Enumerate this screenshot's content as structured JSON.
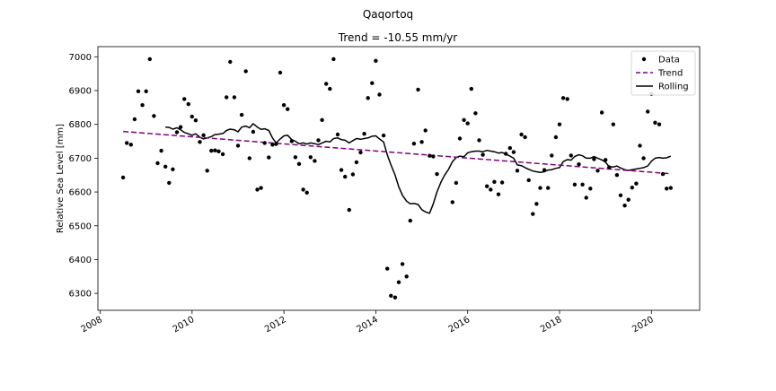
{
  "figure": {
    "suptitle": "Qaqortoq",
    "title": "Trend = -10.55 mm/yr"
  },
  "chart_data": {
    "type": "scatter",
    "ylabel": "Relative Sea Level [mm]",
    "xlim": [
      2007.95,
      2021.05
    ],
    "ylim": [
      6250,
      7030
    ],
    "xticks": [
      2008,
      2010,
      2012,
      2014,
      2016,
      2018,
      2020
    ],
    "yticks": [
      6300,
      6400,
      6500,
      6600,
      6700,
      6800,
      6900,
      7000
    ],
    "legend": {
      "position": "top-right",
      "entries": [
        {
          "label": "Data",
          "kind": "marker",
          "color": "#000000"
        },
        {
          "label": "Trend",
          "kind": "dashed",
          "color": "#800080"
        },
        {
          "label": "Rolling",
          "kind": "line",
          "color": "#000000"
        }
      ]
    },
    "series": [
      {
        "name": "Data",
        "kind": "scatter",
        "color": "#000000",
        "points": [
          [
            2008.5,
            6643
          ],
          [
            2008.58,
            6745
          ],
          [
            2008.67,
            6740
          ],
          [
            2008.75,
            6815
          ],
          [
            2008.83,
            6898
          ],
          [
            2008.92,
            6857
          ],
          [
            2009.0,
            6898
          ],
          [
            2009.08,
            6993
          ],
          [
            2009.17,
            6825
          ],
          [
            2009.25,
            6685
          ],
          [
            2009.33,
            6722
          ],
          [
            2009.42,
            6675
          ],
          [
            2009.5,
            6627
          ],
          [
            2009.58,
            6667
          ],
          [
            2009.67,
            6777
          ],
          [
            2009.75,
            6792
          ],
          [
            2009.83,
            6875
          ],
          [
            2009.92,
            6860
          ],
          [
            2010.0,
            6823
          ],
          [
            2010.08,
            6812
          ],
          [
            2010.17,
            6748
          ],
          [
            2010.25,
            6768
          ],
          [
            2010.33,
            6663
          ],
          [
            2010.42,
            6722
          ],
          [
            2010.5,
            6723
          ],
          [
            2010.58,
            6720
          ],
          [
            2010.67,
            6712
          ],
          [
            2010.75,
            6880
          ],
          [
            2010.83,
            6985
          ],
          [
            2010.92,
            6880
          ],
          [
            2011.0,
            6737
          ],
          [
            2011.08,
            6828
          ],
          [
            2011.17,
            6957
          ],
          [
            2011.25,
            6700
          ],
          [
            2011.33,
            6778
          ],
          [
            2011.42,
            6607
          ],
          [
            2011.5,
            6612
          ],
          [
            2011.58,
            6745
          ],
          [
            2011.67,
            6702
          ],
          [
            2011.75,
            6740
          ],
          [
            2011.83,
            6742
          ],
          [
            2011.92,
            6953
          ],
          [
            2012.0,
            6857
          ],
          [
            2012.08,
            6845
          ],
          [
            2012.17,
            6750
          ],
          [
            2012.25,
            6703
          ],
          [
            2012.33,
            6683
          ],
          [
            2012.42,
            6607
          ],
          [
            2012.5,
            6598
          ],
          [
            2012.58,
            6703
          ],
          [
            2012.67,
            6692
          ],
          [
            2012.75,
            6753
          ],
          [
            2012.83,
            6813
          ],
          [
            2012.92,
            6920
          ],
          [
            2013.0,
            6905
          ],
          [
            2013.08,
            6993
          ],
          [
            2013.17,
            6770
          ],
          [
            2013.25,
            6665
          ],
          [
            2013.33,
            6645
          ],
          [
            2013.42,
            6547
          ],
          [
            2013.5,
            6652
          ],
          [
            2013.58,
            6688
          ],
          [
            2013.67,
            6717
          ],
          [
            2013.75,
            6772
          ],
          [
            2013.83,
            6878
          ],
          [
            2013.92,
            6922
          ],
          [
            2014.0,
            6988
          ],
          [
            2014.08,
            6888
          ],
          [
            2014.17,
            6767
          ],
          [
            2014.25,
            6373
          ],
          [
            2014.33,
            6293
          ],
          [
            2014.42,
            6288
          ],
          [
            2014.5,
            6333
          ],
          [
            2014.58,
            6387
          ],
          [
            2014.67,
            6350
          ],
          [
            2014.75,
            6515
          ],
          [
            2014.83,
            6743
          ],
          [
            2014.92,
            6903
          ],
          [
            2015.0,
            6748
          ],
          [
            2015.08,
            6782
          ],
          [
            2015.17,
            6707
          ],
          [
            2015.25,
            6705
          ],
          [
            2015.33,
            6653
          ],
          [
            2015.67,
            6570
          ],
          [
            2015.75,
            6627
          ],
          [
            2015.83,
            6758
          ],
          [
            2015.92,
            6813
          ],
          [
            2016.0,
            6803
          ],
          [
            2016.08,
            6905
          ],
          [
            2016.17,
            6833
          ],
          [
            2016.25,
            6753
          ],
          [
            2016.33,
            6710
          ],
          [
            2016.42,
            6617
          ],
          [
            2016.5,
            6607
          ],
          [
            2016.58,
            6630
          ],
          [
            2016.67,
            6593
          ],
          [
            2016.75,
            6628
          ],
          [
            2016.83,
            6713
          ],
          [
            2016.92,
            6730
          ],
          [
            2017.0,
            6718
          ],
          [
            2017.08,
            6663
          ],
          [
            2017.17,
            6770
          ],
          [
            2017.25,
            6762
          ],
          [
            2017.33,
            6635
          ],
          [
            2017.42,
            6535
          ],
          [
            2017.5,
            6565
          ],
          [
            2017.58,
            6612
          ],
          [
            2017.67,
            6665
          ],
          [
            2017.75,
            6612
          ],
          [
            2017.83,
            6708
          ],
          [
            2017.92,
            6762
          ],
          [
            2018.0,
            6800
          ],
          [
            2018.08,
            6878
          ],
          [
            2018.17,
            6875
          ],
          [
            2018.25,
            6708
          ],
          [
            2018.33,
            6622
          ],
          [
            2018.42,
            6682
          ],
          [
            2018.5,
            6622
          ],
          [
            2018.58,
            6583
          ],
          [
            2018.67,
            6610
          ],
          [
            2018.75,
            6697
          ],
          [
            2018.83,
            6663
          ],
          [
            2018.92,
            6835
          ],
          [
            2019.0,
            6695
          ],
          [
            2019.08,
            6673
          ],
          [
            2019.17,
            6800
          ],
          [
            2019.25,
            6650
          ],
          [
            2019.33,
            6590
          ],
          [
            2019.42,
            6560
          ],
          [
            2019.5,
            6577
          ],
          [
            2019.58,
            6613
          ],
          [
            2019.67,
            6625
          ],
          [
            2019.75,
            6737
          ],
          [
            2019.83,
            6700
          ],
          [
            2019.92,
            6838
          ],
          [
            2020.0,
            6890
          ],
          [
            2020.08,
            6805
          ],
          [
            2020.17,
            6800
          ],
          [
            2020.25,
            6653
          ],
          [
            2020.33,
            6610
          ],
          [
            2020.42,
            6612
          ]
        ]
      },
      {
        "name": "Trend",
        "kind": "dashed",
        "color": "#800080",
        "points": [
          [
            2008.5,
            6779
          ],
          [
            2020.42,
            6654
          ]
        ]
      },
      {
        "name": "Rolling",
        "kind": "line",
        "color": "#000000",
        "points": [
          [
            2009.42,
            6792
          ],
          [
            2009.5,
            6791
          ],
          [
            2009.58,
            6786
          ],
          [
            2009.67,
            6790
          ],
          [
            2009.75,
            6784
          ],
          [
            2009.83,
            6776
          ],
          [
            2009.92,
            6772
          ],
          [
            2010.0,
            6768
          ],
          [
            2010.08,
            6772
          ],
          [
            2010.17,
            6762
          ],
          [
            2010.25,
            6757
          ],
          [
            2010.33,
            6760
          ],
          [
            2010.42,
            6764
          ],
          [
            2010.5,
            6770
          ],
          [
            2010.58,
            6771
          ],
          [
            2010.67,
            6773
          ],
          [
            2010.75,
            6782
          ],
          [
            2010.83,
            6786
          ],
          [
            2010.92,
            6784
          ],
          [
            2011.0,
            6778
          ],
          [
            2011.08,
            6792
          ],
          [
            2011.17,
            6795
          ],
          [
            2011.25,
            6790
          ],
          [
            2011.33,
            6802
          ],
          [
            2011.42,
            6792
          ],
          [
            2011.5,
            6785
          ],
          [
            2011.58,
            6787
          ],
          [
            2011.67,
            6782
          ],
          [
            2011.75,
            6760
          ],
          [
            2011.83,
            6745
          ],
          [
            2011.92,
            6757
          ],
          [
            2012.0,
            6766
          ],
          [
            2012.08,
            6768
          ],
          [
            2012.17,
            6755
          ],
          [
            2012.25,
            6750
          ],
          [
            2012.33,
            6743
          ],
          [
            2012.42,
            6745
          ],
          [
            2012.5,
            6742
          ],
          [
            2012.58,
            6745
          ],
          [
            2012.67,
            6743
          ],
          [
            2012.75,
            6740
          ],
          [
            2012.83,
            6745
          ],
          [
            2012.92,
            6750
          ],
          [
            2013.0,
            6748
          ],
          [
            2013.08,
            6758
          ],
          [
            2013.17,
            6760
          ],
          [
            2013.25,
            6755
          ],
          [
            2013.33,
            6753
          ],
          [
            2013.42,
            6745
          ],
          [
            2013.5,
            6752
          ],
          [
            2013.58,
            6758
          ],
          [
            2013.67,
            6756
          ],
          [
            2013.75,
            6758
          ],
          [
            2013.83,
            6760
          ],
          [
            2013.92,
            6765
          ],
          [
            2014.0,
            6766
          ],
          [
            2014.08,
            6757
          ],
          [
            2014.17,
            6748
          ],
          [
            2014.25,
            6710
          ],
          [
            2014.33,
            6680
          ],
          [
            2014.42,
            6650
          ],
          [
            2014.5,
            6615
          ],
          [
            2014.58,
            6590
          ],
          [
            2014.67,
            6573
          ],
          [
            2014.75,
            6565
          ],
          [
            2014.83,
            6566
          ],
          [
            2014.92,
            6563
          ],
          [
            2015.0,
            6548
          ],
          [
            2015.08,
            6541
          ],
          [
            2015.17,
            6537
          ],
          [
            2015.25,
            6565
          ],
          [
            2015.33,
            6600
          ],
          [
            2015.42,
            6630
          ],
          [
            2015.5,
            6650
          ],
          [
            2015.58,
            6666
          ],
          [
            2015.67,
            6690
          ],
          [
            2015.75,
            6702
          ],
          [
            2015.83,
            6706
          ],
          [
            2015.92,
            6704
          ],
          [
            2016.0,
            6716
          ],
          [
            2016.08,
            6719
          ],
          [
            2016.17,
            6721
          ],
          [
            2016.25,
            6721
          ],
          [
            2016.33,
            6719
          ],
          [
            2016.42,
            6723
          ],
          [
            2016.5,
            6721
          ],
          [
            2016.58,
            6719
          ],
          [
            2016.67,
            6715
          ],
          [
            2016.75,
            6717
          ],
          [
            2016.83,
            6712
          ],
          [
            2016.92,
            6706
          ],
          [
            2017.0,
            6700
          ],
          [
            2017.08,
            6680
          ],
          [
            2017.17,
            6678
          ],
          [
            2017.25,
            6672
          ],
          [
            2017.33,
            6667
          ],
          [
            2017.42,
            6662
          ],
          [
            2017.5,
            6660
          ],
          [
            2017.58,
            6658
          ],
          [
            2017.67,
            6660
          ],
          [
            2017.75,
            6665
          ],
          [
            2017.83,
            6666
          ],
          [
            2017.92,
            6670
          ],
          [
            2018.0,
            6672
          ],
          [
            2018.08,
            6690
          ],
          [
            2018.17,
            6696
          ],
          [
            2018.25,
            6694
          ],
          [
            2018.33,
            6705
          ],
          [
            2018.42,
            6710
          ],
          [
            2018.5,
            6707
          ],
          [
            2018.58,
            6700
          ],
          [
            2018.67,
            6700
          ],
          [
            2018.75,
            6705
          ],
          [
            2018.83,
            6700
          ],
          [
            2018.92,
            6695
          ],
          [
            2019.0,
            6688
          ],
          [
            2019.08,
            6675
          ],
          [
            2019.17,
            6674
          ],
          [
            2019.25,
            6677
          ],
          [
            2019.33,
            6671
          ],
          [
            2019.42,
            6666
          ],
          [
            2019.5,
            6664
          ],
          [
            2019.58,
            6666
          ],
          [
            2019.67,
            6668
          ],
          [
            2019.75,
            6670
          ],
          [
            2019.83,
            6672
          ],
          [
            2019.92,
            6677
          ],
          [
            2020.0,
            6691
          ],
          [
            2020.08,
            6700
          ],
          [
            2020.17,
            6702
          ],
          [
            2020.25,
            6700
          ],
          [
            2020.33,
            6701
          ],
          [
            2020.42,
            6706
          ]
        ]
      }
    ]
  }
}
